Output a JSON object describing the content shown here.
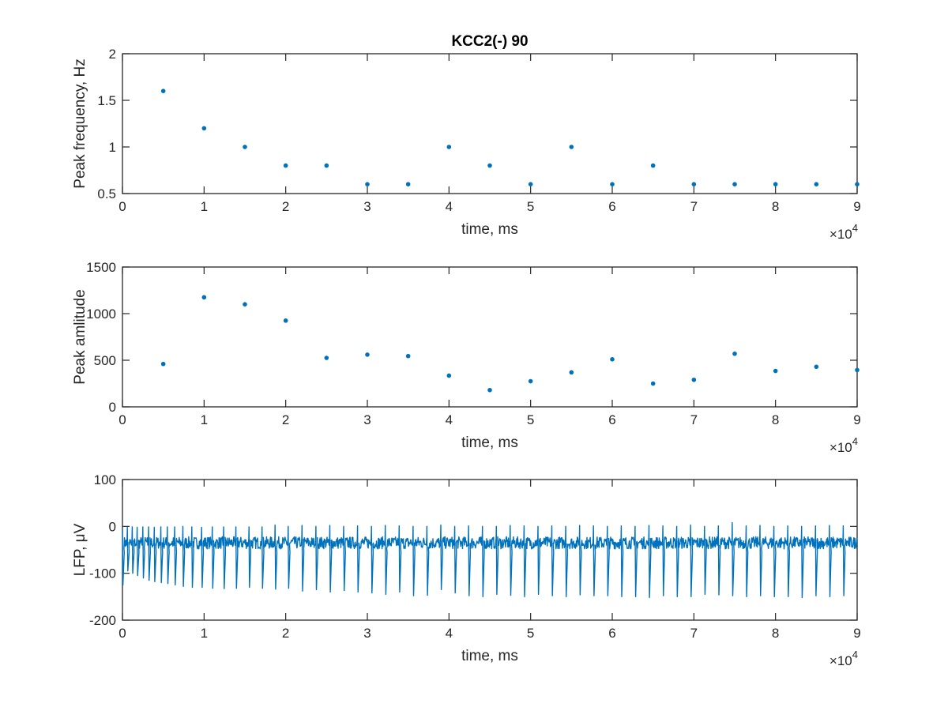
{
  "figure": {
    "title": "KCC2(-) 90",
    "series_color": "#0072BD",
    "axis_color": "#262626"
  },
  "chart_data": [
    {
      "type": "scatter",
      "title": "KCC2(-) 90",
      "xlabel": "time, ms",
      "ylabel": "Peak frequency, Hz",
      "x_exponent_label": "×10",
      "x_exponent_power": "4",
      "xlim": [
        0,
        90000
      ],
      "ylim": [
        0.5,
        2
      ],
      "xticks": [
        0,
        10000,
        20000,
        30000,
        40000,
        50000,
        60000,
        70000,
        80000,
        90000
      ],
      "xtick_labels": [
        "0",
        "1",
        "2",
        "3",
        "4",
        "5",
        "6",
        "7",
        "8",
        "9"
      ],
      "yticks": [
        0.5,
        1,
        1.5,
        2
      ],
      "ytick_labels": [
        "0.5",
        "1",
        "1.5",
        "2"
      ],
      "grid": false,
      "x": [
        5000,
        10000,
        15000,
        20000,
        25000,
        30000,
        35000,
        40000,
        45000,
        50000,
        55000,
        60000,
        65000,
        70000,
        75000,
        80000,
        85000,
        90000
      ],
      "y": [
        1.6,
        1.2,
        1.0,
        0.8,
        0.8,
        0.6,
        0.6,
        1.0,
        0.8,
        0.6,
        1.0,
        0.6,
        0.8,
        0.6,
        0.6,
        0.6,
        0.6,
        0.6
      ]
    },
    {
      "type": "scatter",
      "xlabel": "time, ms",
      "ylabel": "Peak amlitude",
      "x_exponent_label": "×10",
      "x_exponent_power": "4",
      "xlim": [
        0,
        90000
      ],
      "ylim": [
        0,
        1500
      ],
      "xticks": [
        0,
        10000,
        20000,
        30000,
        40000,
        50000,
        60000,
        70000,
        80000,
        90000
      ],
      "xtick_labels": [
        "0",
        "1",
        "2",
        "3",
        "4",
        "5",
        "6",
        "7",
        "8",
        "9"
      ],
      "yticks": [
        0,
        500,
        1000,
        1500
      ],
      "ytick_labels": [
        "0",
        "500",
        "1000",
        "1500"
      ],
      "grid": false,
      "x": [
        5000,
        10000,
        15000,
        20000,
        25000,
        30000,
        35000,
        40000,
        45000,
        50000,
        55000,
        60000,
        65000,
        70000,
        75000,
        80000,
        85000,
        90000
      ],
      "y": [
        460,
        1175,
        1100,
        925,
        525,
        560,
        545,
        335,
        180,
        275,
        370,
        510,
        250,
        290,
        570,
        385,
        430,
        395
      ]
    },
    {
      "type": "line",
      "xlabel": "time, ms",
      "ylabel": "LFP, μV",
      "x_exponent_label": "×10",
      "x_exponent_power": "4",
      "xlim": [
        0,
        90000
      ],
      "ylim": [
        -200,
        100
      ],
      "xticks": [
        0,
        10000,
        20000,
        30000,
        40000,
        50000,
        60000,
        70000,
        80000,
        90000
      ],
      "xtick_labels": [
        "0",
        "1",
        "2",
        "3",
        "4",
        "5",
        "6",
        "7",
        "8",
        "9"
      ],
      "yticks": [
        -200,
        -100,
        0,
        100
      ],
      "ytick_labels": [
        "-200",
        "-100",
        "0",
        "100"
      ],
      "grid": false,
      "baseline": -35,
      "spike_times": [
        0,
        600,
        1200,
        1800,
        2500,
        3200,
        3900,
        4700,
        5500,
        6400,
        7400,
        8500,
        9700,
        11000,
        12400,
        13900,
        15500,
        17100,
        18700,
        20300,
        22000,
        23700,
        25400,
        27100,
        28800,
        30500,
        32200,
        33900,
        35600,
        37300,
        39000,
        40700,
        42400,
        44100,
        45800,
        47500,
        49200,
        50900,
        52600,
        54300,
        56000,
        57700,
        59400,
        61100,
        62800,
        64500,
        66200,
        67900,
        69600,
        71300,
        73000,
        74700,
        76400,
        78100,
        79800,
        81500,
        83200,
        84900,
        86600,
        88300
      ],
      "spike_peaks": [
        -5,
        -2,
        -1,
        -2,
        -1,
        -1,
        -2,
        -1,
        -1,
        -1,
        0,
        -1,
        -2,
        -1,
        -1,
        -1,
        -1,
        -1,
        3,
        0,
        2,
        0,
        2,
        0,
        1,
        0,
        2,
        1,
        0,
        0,
        3,
        0,
        1,
        0,
        0,
        2,
        1,
        0,
        1,
        0,
        2,
        1,
        0,
        1,
        0,
        2,
        1,
        0,
        3,
        0,
        1,
        8,
        1,
        2,
        0,
        1,
        0,
        1,
        2,
        1
      ],
      "spike_troughs": [
        -125,
        -95,
        -100,
        -105,
        -110,
        -115,
        -118,
        -120,
        -122,
        -125,
        -128,
        -130,
        -130,
        -132,
        -133,
        -132,
        -130,
        -132,
        -134,
        -132,
        -138,
        -135,
        -140,
        -137,
        -140,
        -142,
        -145,
        -140,
        -148,
        -147,
        -135,
        -142,
        -148,
        -150,
        -145,
        -147,
        -150,
        -145,
        -148,
        -150,
        -146,
        -148,
        -148,
        -150,
        -150,
        -152,
        -148,
        -150,
        -150,
        -145,
        -146,
        -148,
        -150,
        -148,
        -150,
        -150,
        -152,
        -148,
        -150,
        -148
      ]
    }
  ]
}
